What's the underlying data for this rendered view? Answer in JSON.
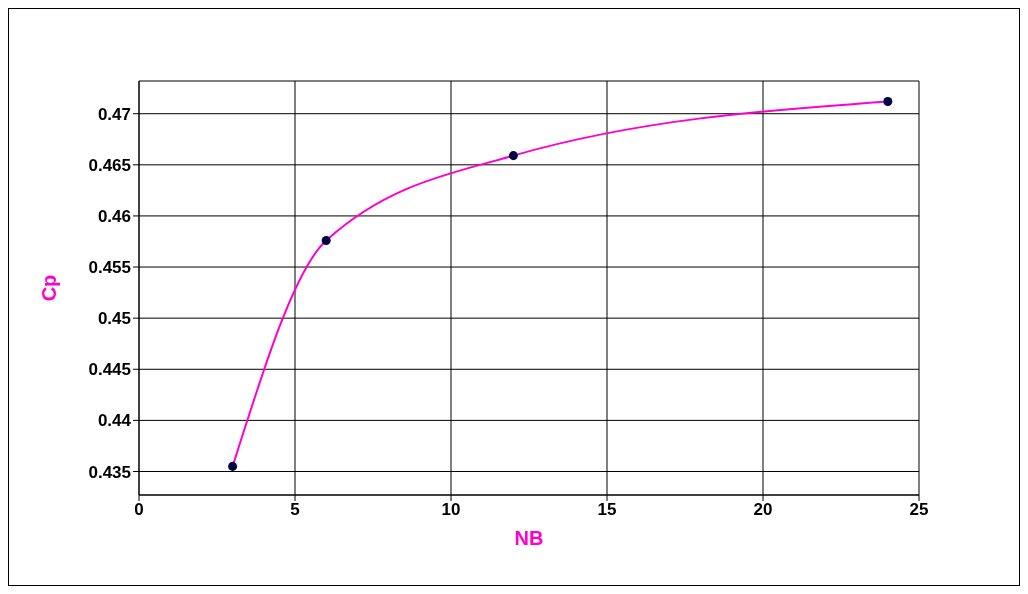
{
  "chart_data": {
    "type": "line",
    "xlabel": "NB",
    "ylabel": "Cp",
    "x": [
      3,
      6,
      12,
      24
    ],
    "series": [
      {
        "type": "line",
        "color": "#ff00cc",
        "marker": "none",
        "values": [
          0.4355,
          0.4576,
          0.4659,
          0.4712
        ]
      },
      {
        "type": "scatter",
        "color": "#000044",
        "marker": "circle",
        "values": [
          0.4355,
          0.4576,
          0.4659,
          0.4712
        ]
      }
    ],
    "grid": true,
    "xlim": [
      0,
      25
    ],
    "xticks": [
      0,
      5,
      10,
      15,
      20,
      25
    ],
    "ylim": [
      0.4327,
      0.4732
    ],
    "yticks": [
      0.435,
      0.44,
      0.445,
      0.45,
      0.455,
      0.46,
      0.465,
      0.47
    ]
  }
}
